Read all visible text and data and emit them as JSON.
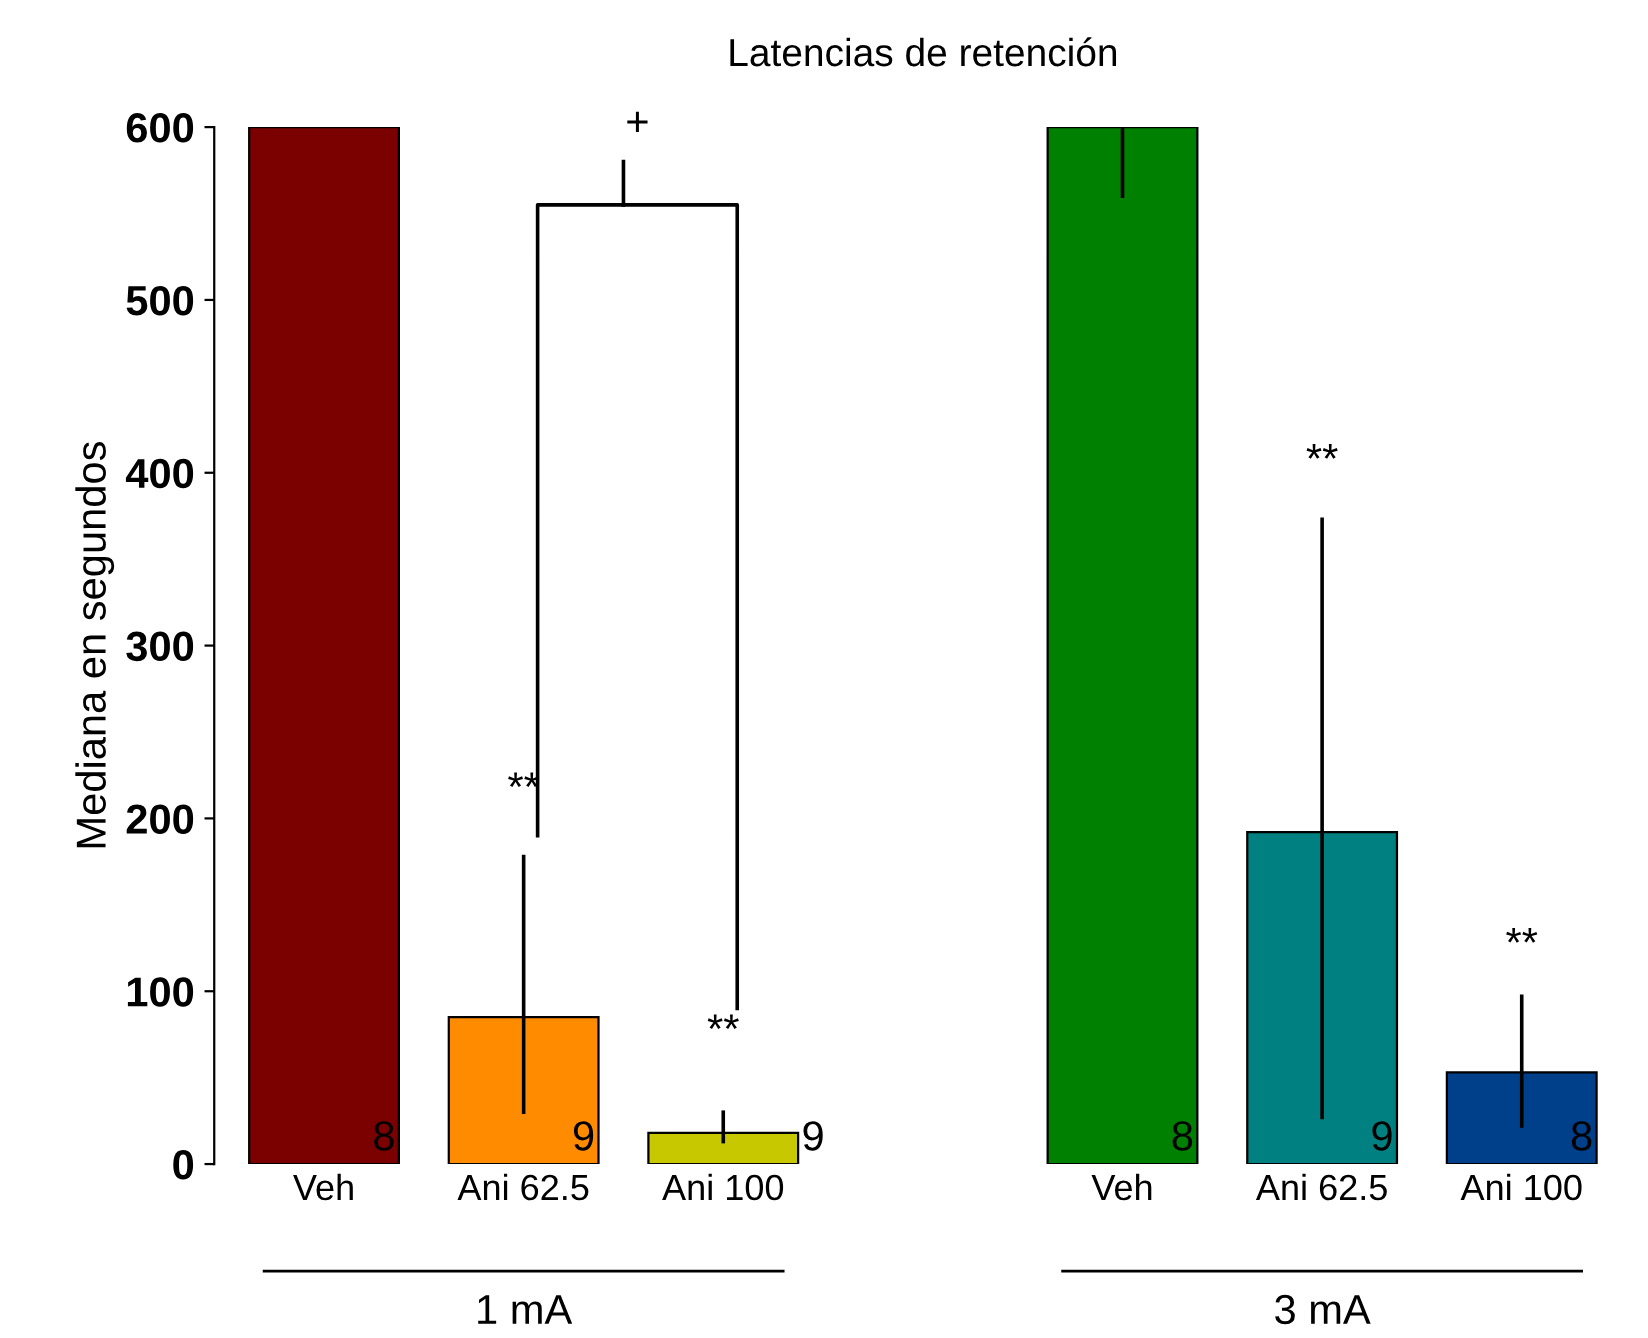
{
  "chart_data": {
    "type": "bar",
    "title": "Latencias de retención",
    "ylabel": "Mediana en segundos",
    "categories": [
      "Veh",
      "Ani 62.5",
      "Ani 100",
      null,
      "Veh",
      "Ani 62.5",
      "Ani 100"
    ],
    "values": [
      600,
      85,
      18,
      null,
      600,
      192,
      53
    ],
    "colors": [
      "#7b0000",
      "#ff8c00",
      "#c8c800",
      "#ffffff",
      "#008000",
      "#008080",
      "#003f8a"
    ],
    "errors": [
      null,
      [
        30,
        178
      ],
      [
        13,
        30
      ],
      null,
      [
        560,
        600
      ],
      [
        27,
        373
      ],
      [
        22,
        97
      ]
    ],
    "ylim": [
      0,
      600
    ],
    "yticks": [
      0,
      100,
      200,
      300,
      400,
      500,
      600
    ],
    "grid": false,
    "annotations": [
      "+",
      "**",
      "**",
      "**",
      "**",
      "8",
      "9",
      "9",
      "8",
      "9",
      "8",
      "1 mA",
      "3 mA"
    ]
  }
}
